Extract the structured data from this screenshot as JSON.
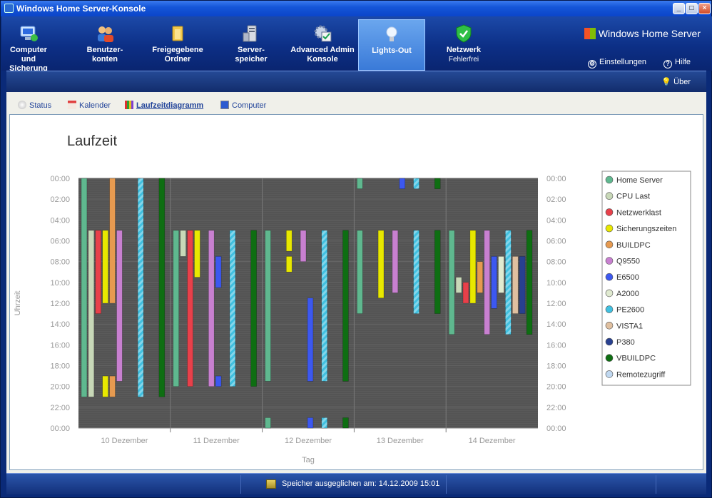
{
  "window": {
    "title": "Windows Home Server-Konsole"
  },
  "nav": {
    "items": [
      {
        "label": "Computer und Sicherung",
        "icon": "computer-backup-icon"
      },
      {
        "label": "Benutzer-konten",
        "icon": "users-icon"
      },
      {
        "label": "Freigegebene Ordner",
        "icon": "shared-folder-icon"
      },
      {
        "label": "Server-speicher",
        "icon": "server-storage-icon"
      },
      {
        "label": "Advanced Admin Konsole",
        "icon": "admin-console-icon"
      },
      {
        "label": "Lights-Out",
        "icon": "lightbulb-icon"
      },
      {
        "label": "Netzwerk",
        "sublabel": "Fehlerfrei",
        "icon": "network-shield-icon"
      }
    ],
    "active": "Lights-Out",
    "brand": "Windows Home Server",
    "settings_label": "Einstellungen",
    "help_label": "Hilfe",
    "about_label": "Über"
  },
  "tabs": [
    {
      "label": "Status",
      "icon": "status-icon"
    },
    {
      "label": "Kalender",
      "icon": "calendar-icon"
    },
    {
      "label": "Laufzeitdiagramm",
      "icon": "chart-icon"
    },
    {
      "label": "Computer",
      "icon": "computer-icon"
    }
  ],
  "active_tab": "Laufzeitdiagramm",
  "status": {
    "text": "Speicher ausgeglichen am: 14.12.2009 15:01"
  },
  "chart_data": {
    "type": "bar",
    "title": "Laufzeit",
    "xlabel": "Tag",
    "ylabel": "Uhrzeit",
    "categories": [
      "10 Dezember",
      "11 Dezember",
      "12 Dezember",
      "13 Dezember",
      "14 Dezember"
    ],
    "y_ticks": [
      "00:00",
      "02:00",
      "04:00",
      "06:00",
      "08:00",
      "10:00",
      "12:00",
      "14:00",
      "16:00",
      "18:00",
      "20:00",
      "22:00",
      "00:00"
    ],
    "ylim": [
      0,
      24
    ],
    "legend_position": "right",
    "series": [
      {
        "name": "Home Server",
        "color": "#5fb88f",
        "intervals": [
          [
            0,
            [
              [
                0,
                21
              ]
            ]
          ],
          [
            1,
            [
              [
                5,
                20
              ]
            ]
          ],
          [
            2,
            [
              [
                5,
                19.5
              ],
              [
                23,
                24
              ]
            ]
          ],
          [
            3,
            [
              [
                0,
                1
              ],
              [
                5,
                13
              ]
            ]
          ],
          [
            4,
            [
              [
                5,
                15
              ]
            ]
          ]
        ]
      },
      {
        "name": "CPU Last",
        "color": "#c8d8b8",
        "intervals": [
          [
            0,
            [
              [
                5,
                21
              ]
            ]
          ],
          [
            1,
            [
              [
                5,
                7.5
              ]
            ]
          ],
          [
            4,
            [
              [
                9.5,
                11
              ]
            ]
          ]
        ]
      },
      {
        "name": "Netzwerklast",
        "color": "#e8404a",
        "intervals": [
          [
            0,
            [
              [
                5,
                13
              ]
            ]
          ],
          [
            1,
            [
              [
                5,
                20
              ]
            ]
          ],
          [
            4,
            [
              [
                10,
                12
              ]
            ]
          ]
        ]
      },
      {
        "name": "Sicherungszeiten",
        "color": "#e8e800",
        "intervals": [
          [
            0,
            [
              [
                5,
                12
              ],
              [
                19,
                21
              ]
            ]
          ],
          [
            1,
            [
              [
                5,
                9.5
              ]
            ]
          ],
          [
            2,
            [
              [
                5,
                7
              ],
              [
                7.5,
                9
              ]
            ]
          ],
          [
            3,
            [
              [
                5,
                11.5
              ]
            ]
          ],
          [
            4,
            [
              [
                5,
                12
              ]
            ]
          ]
        ]
      },
      {
        "name": "BUILDPC",
        "color": "#e69a50",
        "intervals": [
          [
            0,
            [
              [
                0,
                12
              ],
              [
                19,
                21
              ]
            ]
          ],
          [
            4,
            [
              [
                8,
                11
              ]
            ]
          ]
        ]
      },
      {
        "name": "Q9550",
        "color": "#c880d0",
        "intervals": [
          [
            0,
            [
              [
                5,
                19.5
              ]
            ]
          ],
          [
            1,
            [
              [
                5,
                20
              ]
            ]
          ],
          [
            2,
            [
              [
                5,
                8
              ]
            ]
          ],
          [
            3,
            [
              [
                5,
                11
              ]
            ]
          ],
          [
            4,
            [
              [
                5,
                15
              ]
            ]
          ]
        ]
      },
      {
        "name": "E6500",
        "color": "#3c58f0",
        "intervals": [
          [
            1,
            [
              [
                7.5,
                10.5
              ],
              [
                19,
                20
              ]
            ]
          ],
          [
            2,
            [
              [
                11.5,
                19.5
              ],
              [
                23,
                24
              ]
            ]
          ],
          [
            3,
            [
              [
                0,
                1
              ]
            ]
          ],
          [
            4,
            [
              [
                7.5,
                12.5
              ]
            ]
          ]
        ]
      },
      {
        "name": "A2000",
        "color": "#e0ead0",
        "intervals": [
          [
            4,
            [
              [
                7.5,
                11
              ]
            ]
          ]
        ]
      },
      {
        "name": "PE2600",
        "color": "#40c0e0",
        "intervals": [
          [
            0,
            [
              [
                0,
                21
              ]
            ]
          ],
          [
            1,
            [
              [
                5,
                20
              ]
            ]
          ],
          [
            2,
            [
              [
                5,
                19.5
              ],
              [
                23,
                24
              ]
            ]
          ],
          [
            3,
            [
              [
                0,
                1
              ],
              [
                5,
                13
              ]
            ]
          ],
          [
            4,
            [
              [
                5,
                15
              ]
            ]
          ]
        ]
      },
      {
        "name": "VISTA1",
        "color": "#e0c0a0",
        "intervals": [
          [
            4,
            [
              [
                7.5,
                13
              ]
            ]
          ]
        ]
      },
      {
        "name": "P380",
        "color": "#284090",
        "intervals": [
          [
            4,
            [
              [
                7.5,
                13
              ]
            ]
          ]
        ]
      },
      {
        "name": "VBUILDPC",
        "color": "#0e6e12",
        "intervals": [
          [
            0,
            [
              [
                0,
                21
              ]
            ]
          ],
          [
            1,
            [
              [
                5,
                20
              ]
            ]
          ],
          [
            2,
            [
              [
                5,
                19.5
              ],
              [
                23,
                24
              ]
            ]
          ],
          [
            3,
            [
              [
                0,
                1
              ],
              [
                5,
                13
              ]
            ]
          ],
          [
            4,
            [
              [
                5,
                15
              ]
            ]
          ]
        ]
      },
      {
        "name": "Remotezugriff",
        "color": "#c0d8f0",
        "intervals": []
      }
    ]
  }
}
